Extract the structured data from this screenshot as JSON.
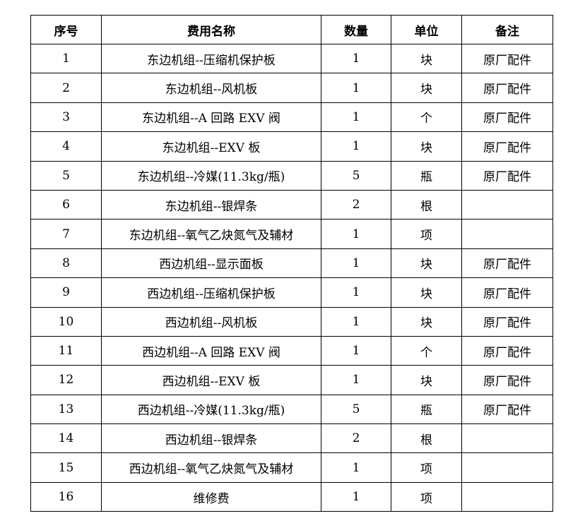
{
  "table": {
    "headers": [
      "序号",
      "费用名称",
      "数量",
      "单位",
      "备注"
    ],
    "rows": [
      [
        "1",
        "东边机组--压缩机保护板",
        "1",
        "块",
        "原厂配件"
      ],
      [
        "2",
        "东边机组--风机板",
        "1",
        "块",
        "原厂配件"
      ],
      [
        "3",
        "东边机组--A 回路 EXV 阀",
        "1",
        "个",
        "原厂配件"
      ],
      [
        "4",
        "东边机组--EXV 板",
        "1",
        "块",
        "原厂配件"
      ],
      [
        "5",
        "东边机组--冷媒(11.3kg/瓶)",
        "5",
        "瓶",
        "原厂配件"
      ],
      [
        "6",
        "东边机组--银焊条",
        "2",
        "根",
        ""
      ],
      [
        "7",
        "东边机组--氧气乙炔氮气及辅材",
        "1",
        "项",
        ""
      ],
      [
        "8",
        "西边机组--显示面板",
        "1",
        "块",
        "原厂配件"
      ],
      [
        "9",
        "西边机组--压缩机保护板",
        "1",
        "块",
        "原厂配件"
      ],
      [
        "10",
        "西边机组--风机板",
        "1",
        "块",
        "原厂配件"
      ],
      [
        "11",
        "西边机组--A 回路 EXV 阀",
        "1",
        "个",
        "原厂配件"
      ],
      [
        "12",
        "西边机组--EXV 板",
        "1",
        "块",
        "原厂配件"
      ],
      [
        "13",
        "西边机组--冷媒(11.3kg/瓶)",
        "5",
        "瓶",
        "原厂配件"
      ],
      [
        "14",
        "西边机组--银焊条",
        "2",
        "根",
        ""
      ],
      [
        "15",
        "西边机组--氧气乙炔氮气及辅材",
        "1",
        "项",
        ""
      ],
      [
        "16",
        "维修费",
        "1",
        "项",
        ""
      ]
    ]
  }
}
